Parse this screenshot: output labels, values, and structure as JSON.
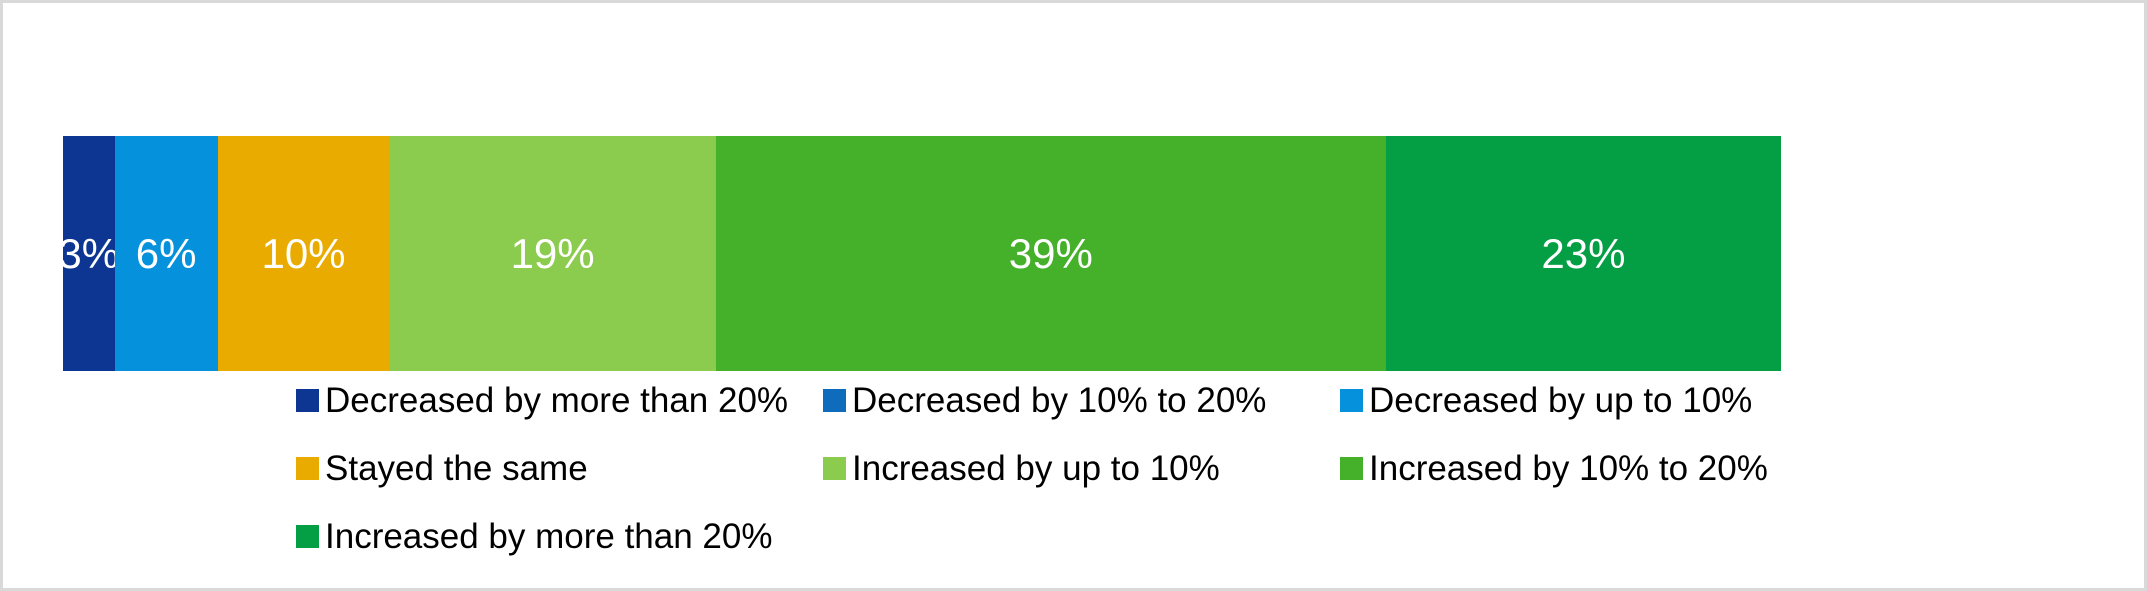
{
  "canvas": {
    "background_color": "#ffffff",
    "border_color": "#d9d9d9"
  },
  "chart_data": {
    "type": "bar",
    "subtype": "100-percent-stacked-horizontal",
    "title": "",
    "xlabel": "",
    "ylabel": "",
    "xlim": [
      0,
      100
    ],
    "grid": false,
    "axes_visible": false,
    "legend_position": "bottom",
    "legend_columns": 3,
    "categories": [
      "Decreased by more than 20%",
      "Decreased by 10% to 20%",
      "Decreased by up to 10%",
      "Stayed the same",
      "Increased by up to 10%",
      "Increased by 10% to 20%",
      "Increased by more than 20%"
    ],
    "series": [
      {
        "name": "Share of responses",
        "values": [
          3,
          0,
          6,
          10,
          19,
          39,
          23
        ]
      }
    ],
    "values": [
      3,
      0,
      6,
      10,
      19,
      39,
      23
    ],
    "data_labels": [
      "3%",
      "",
      "6%",
      "10%",
      "19%",
      "39%",
      "23%"
    ],
    "colors": [
      "#0d3692",
      "#0f6cbd",
      "#0591db",
      "#eaab00",
      "#8bcb4e",
      "#45b02a",
      "#049e44"
    ],
    "data_label_color": "#ffffff"
  },
  "legend": {
    "text_color": "#000000",
    "items": [
      {
        "label": "Decreased by more than 20%",
        "color": "#0d3692"
      },
      {
        "label": "Decreased by 10% to 20%",
        "color": "#0f6cbd"
      },
      {
        "label": "Decreased by up to 10%",
        "color": "#0591db"
      },
      {
        "label": "Stayed the same",
        "color": "#eaab00"
      },
      {
        "label": "Increased by up to 10%",
        "color": "#8bcb4e"
      },
      {
        "label": "Increased by 10% to 20%",
        "color": "#45b02a"
      },
      {
        "label": "Increased by more than 20%",
        "color": "#049e44"
      }
    ]
  }
}
